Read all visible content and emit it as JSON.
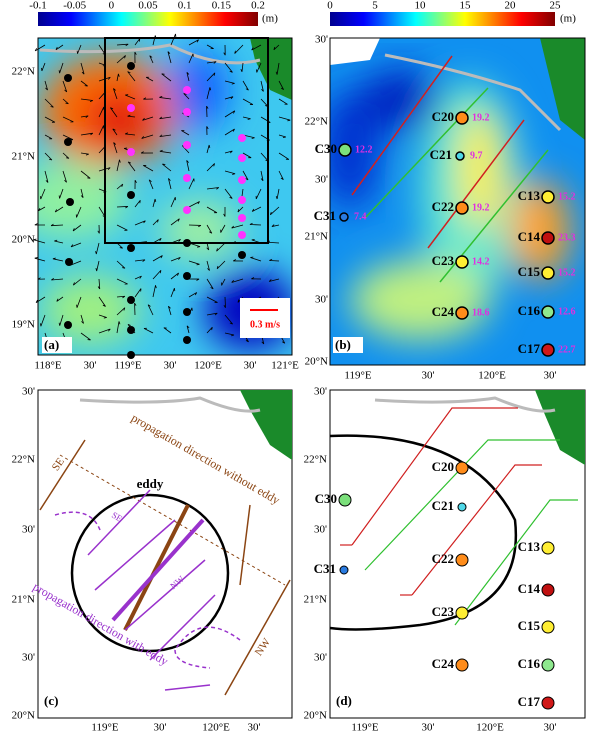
{
  "colorbar_a": {
    "ticks": [
      "-0.1",
      "-0.05",
      "0",
      "0.05",
      "0.1",
      "0.15",
      "0.2"
    ],
    "unit": "(m)"
  },
  "colorbar_b": {
    "ticks": [
      "0",
      "5",
      "10",
      "15",
      "20",
      "25"
    ],
    "unit": "(m)"
  },
  "panel_a": {
    "label": "(a)",
    "scale": "0.3 m/s",
    "lat": [
      "22°N",
      "21°N",
      "20°N",
      "19°N"
    ],
    "lon": [
      "118°E",
      "30'",
      "119°E",
      "30'",
      "120°E",
      "30'",
      "121°E"
    ]
  },
  "panel_b": {
    "label": "(b)",
    "lat": [
      "30'",
      "22°N",
      "30'",
      "21°N",
      "30'",
      "20°N"
    ],
    "lon": [
      "119°E",
      "30'",
      "120°E",
      "30'"
    ]
  },
  "panel_c": {
    "label": "(c)",
    "eddy": "eddy",
    "without": "propagation direction without eddy",
    "with": "propagation direction with eddy",
    "se": "SE",
    "nw": "NW",
    "lat": [
      "30'",
      "22°N",
      "30'",
      "21°N",
      "30'",
      "20°N"
    ],
    "lon": [
      "119°E",
      "30'",
      "120°E",
      "30'"
    ]
  },
  "panel_d": {
    "label": "(d)",
    "lat": [
      "30'",
      "22°N",
      "30'",
      "21°N",
      "30'",
      "20°N"
    ],
    "lon": [
      "119°E",
      "30'",
      "120°E",
      "30'"
    ]
  },
  "stations": [
    {
      "name": "C20",
      "value": 19.2
    },
    {
      "name": "C21",
      "value": 9.7
    },
    {
      "name": "C30",
      "value": 12.2
    },
    {
      "name": "C31",
      "value": 7.4
    },
    {
      "name": "C22",
      "value": 19.2
    },
    {
      "name": "C23",
      "value": 14.2
    },
    {
      "name": "C24",
      "value": 18.6
    },
    {
      "name": "C13",
      "value": 15.2
    },
    {
      "name": "C14",
      "value": 23.3
    },
    {
      "name": "C15",
      "value": 15.2
    },
    {
      "name": "C16",
      "value": 12.6
    },
    {
      "name": "C17",
      "value": 22.7
    }
  ]
}
